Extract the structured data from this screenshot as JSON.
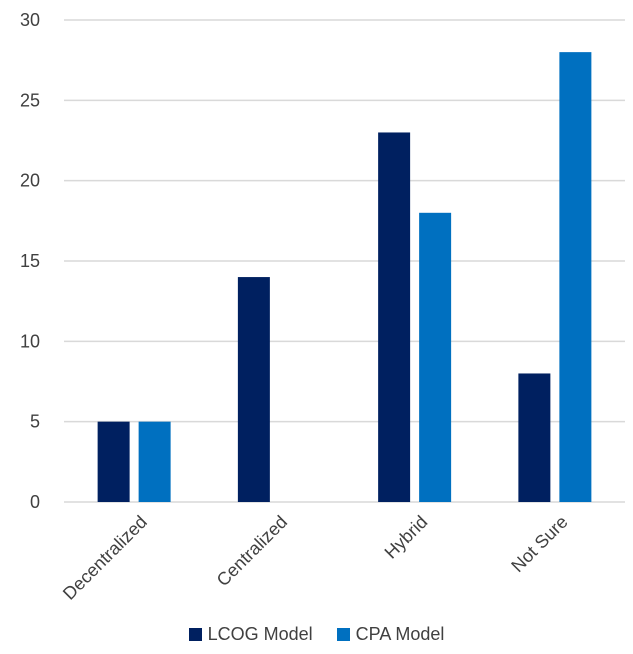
{
  "chart_data": {
    "type": "bar",
    "categories": [
      "Decentralized",
      "Centralized",
      "Hybrid",
      "Not Sure"
    ],
    "series": [
      {
        "name": "LCOG Model",
        "values": [
          5,
          14,
          23,
          8
        ],
        "color": "#002060"
      },
      {
        "name": "CPA Model",
        "values": [
          5,
          0,
          18,
          28
        ],
        "color": "#0070C0"
      }
    ],
    "ylim": [
      0,
      30
    ],
    "yticks": [
      0,
      5,
      10,
      15,
      20,
      25,
      30
    ],
    "grid": true,
    "legend_position": "bottom"
  }
}
